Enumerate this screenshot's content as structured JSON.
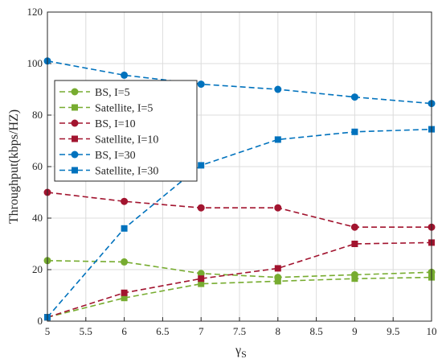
{
  "chart_data": {
    "type": "line",
    "xlabel_main": "γ",
    "xlabel_sub": "S",
    "ylabel": "Throughput(kbps/HZ)",
    "xlim": [
      5,
      10
    ],
    "ylim": [
      0,
      120
    ],
    "xticks": [
      "5",
      "5.5",
      "6",
      "6.5",
      "7",
      "7.5",
      "8",
      "8.5",
      "9",
      "9.5",
      "10"
    ],
    "yticks": [
      "0",
      "20",
      "40",
      "60",
      "80",
      "100",
      "120"
    ],
    "grid": true,
    "legend_position": "upper-left",
    "x": [
      5,
      6,
      7,
      8,
      9,
      10
    ],
    "series": [
      {
        "name": "BS, I=5",
        "color": "#77ac30",
        "marker": "circle",
        "values": [
          23.5,
          23,
          18.5,
          17,
          18,
          19
        ]
      },
      {
        "name": "Satellite, I=5",
        "color": "#77ac30",
        "marker": "square",
        "values": [
          1.5,
          9,
          14.5,
          15.5,
          16.5,
          17
        ]
      },
      {
        "name": "BS, I=10",
        "color": "#a2142f",
        "marker": "circle",
        "values": [
          50,
          46.5,
          44,
          44,
          36.5,
          36.5
        ]
      },
      {
        "name": "Satellite, I=10",
        "color": "#a2142f",
        "marker": "square",
        "values": [
          1.5,
          11,
          16.5,
          20.5,
          30,
          30.5
        ]
      },
      {
        "name": "BS, I=30",
        "color": "#0072bd",
        "marker": "circle",
        "values": [
          101,
          95.5,
          92,
          90,
          87,
          84.5
        ]
      },
      {
        "name": "Satellite, I=30",
        "color": "#0072bd",
        "marker": "square",
        "values": [
          1.5,
          36,
          60.5,
          70.5,
          73.5,
          74.5
        ]
      }
    ]
  }
}
